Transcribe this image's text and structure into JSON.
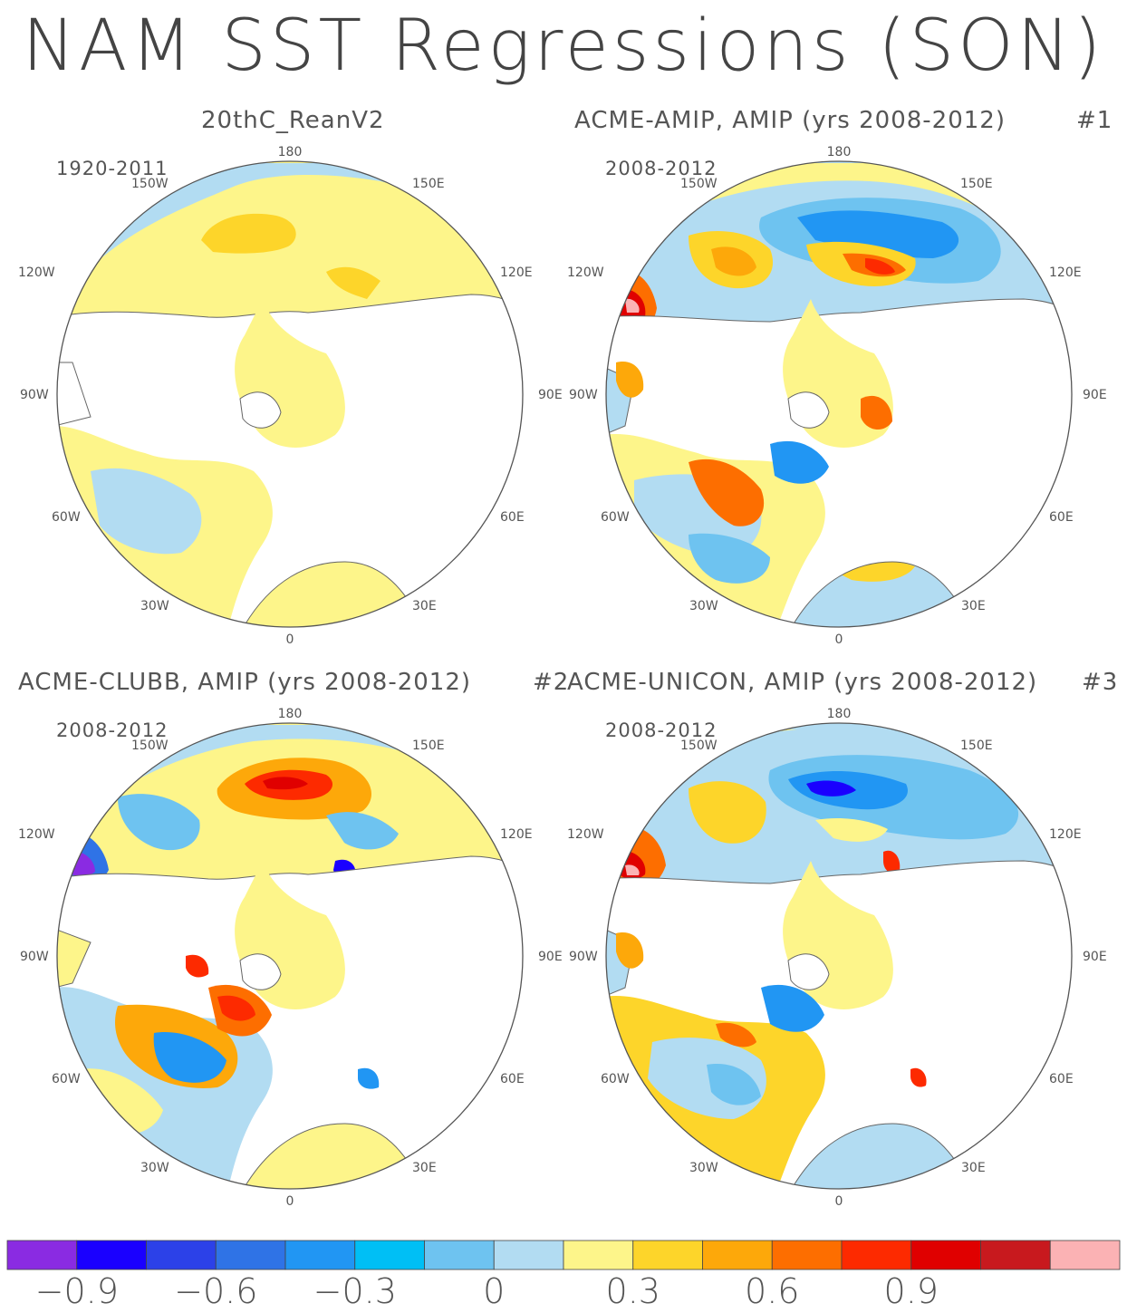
{
  "title": "NAM SST Regressions (SON)",
  "panels": [
    {
      "title": "20thC_ReanV2",
      "period": "1920-2011",
      "number": ""
    },
    {
      "title": "ACME-AMIP, AMIP (yrs 2008-2012)",
      "period": "2008-2012",
      "number": "#1"
    },
    {
      "title": "ACME-CLUBB, AMIP (yrs 2008-2012)",
      "period": "2008-2012",
      "number": "#2"
    },
    {
      "title": "ACME-UNICON, AMIP (yrs 2008-2012)",
      "period": "2008-2012",
      "number": "#3"
    }
  ],
  "lon_labels": {
    "top": "180",
    "bottom": "0",
    "left": "90W",
    "right": "90E",
    "upper_left": "120W",
    "upper_right": "120E",
    "top_left": "150W",
    "top_right": "150E",
    "lower_left": "60W",
    "lower_right": "60E",
    "bottom_left": "30W",
    "bottom_right": "30E"
  },
  "colorbar": {
    "colors": [
      "#8a2be2",
      "#1a00ff",
      "#2c41e8",
      "#2f73e6",
      "#2196f3",
      "#00bff5",
      "#6ec3f0",
      "#b2dcf2",
      "#fdf58a",
      "#fdd52a",
      "#fda80a",
      "#fd6e00",
      "#fd2a00",
      "#e00000",
      "#c8191e",
      "#fbb2b4"
    ],
    "labels": [
      "-0.9",
      "-0.6",
      "-0.3",
      "0",
      "0.3",
      "0.6",
      "0.9"
    ],
    "min": -1.05,
    "step": 0.15
  }
}
